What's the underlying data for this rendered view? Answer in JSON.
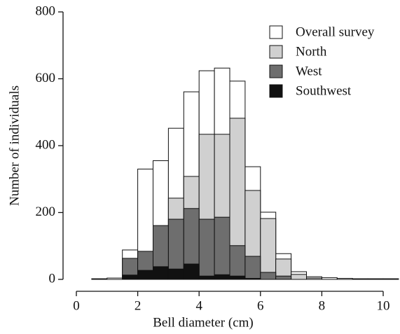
{
  "chart_data": {
    "type": "histogram",
    "x_label": "Bell diameter (cm)",
    "y_label": "Number of individuals",
    "bins": [
      0,
      0.5,
      1,
      1.5,
      2,
      2.5,
      3,
      3.5,
      4,
      4.5,
      5,
      5.5,
      6,
      6.5,
      7,
      7.5,
      8,
      8.5,
      9,
      9.5,
      10,
      10.5
    ],
    "series": [
      {
        "name": "Overall survey",
        "color": "#ffffff",
        "values": [
          0,
          2,
          4,
          88,
          330,
          355,
          452,
          561,
          624,
          632,
          593,
          337,
          201,
          77,
          23,
          8,
          5,
          3,
          2,
          2,
          2
        ]
      },
      {
        "name": "North",
        "color": "#d0d0d0",
        "values": [
          0,
          0,
          0,
          0,
          0,
          0,
          243,
          308,
          434,
          434,
          482,
          266,
          182,
          61,
          15,
          4,
          0,
          0,
          0,
          0,
          0
        ]
      },
      {
        "name": "West",
        "color": "#6e6e6e",
        "values": [
          0,
          0,
          0,
          63,
          84,
          161,
          180,
          212,
          180,
          186,
          101,
          69,
          21,
          10,
          0,
          0,
          0,
          0,
          0,
          0,
          0
        ]
      },
      {
        "name": "Southwest",
        "color": "#111111",
        "values": [
          0,
          0,
          0,
          13,
          27,
          38,
          31,
          46,
          10,
          14,
          10,
          3,
          0,
          0,
          0,
          0,
          0,
          0,
          0,
          0,
          0
        ]
      }
    ],
    "xlim": [
      0,
      10
    ],
    "xticks": [
      0,
      2,
      4,
      6,
      8,
      10
    ],
    "ylim": [
      0,
      800
    ],
    "yticks": [
      0,
      200,
      400,
      600,
      800
    ]
  }
}
